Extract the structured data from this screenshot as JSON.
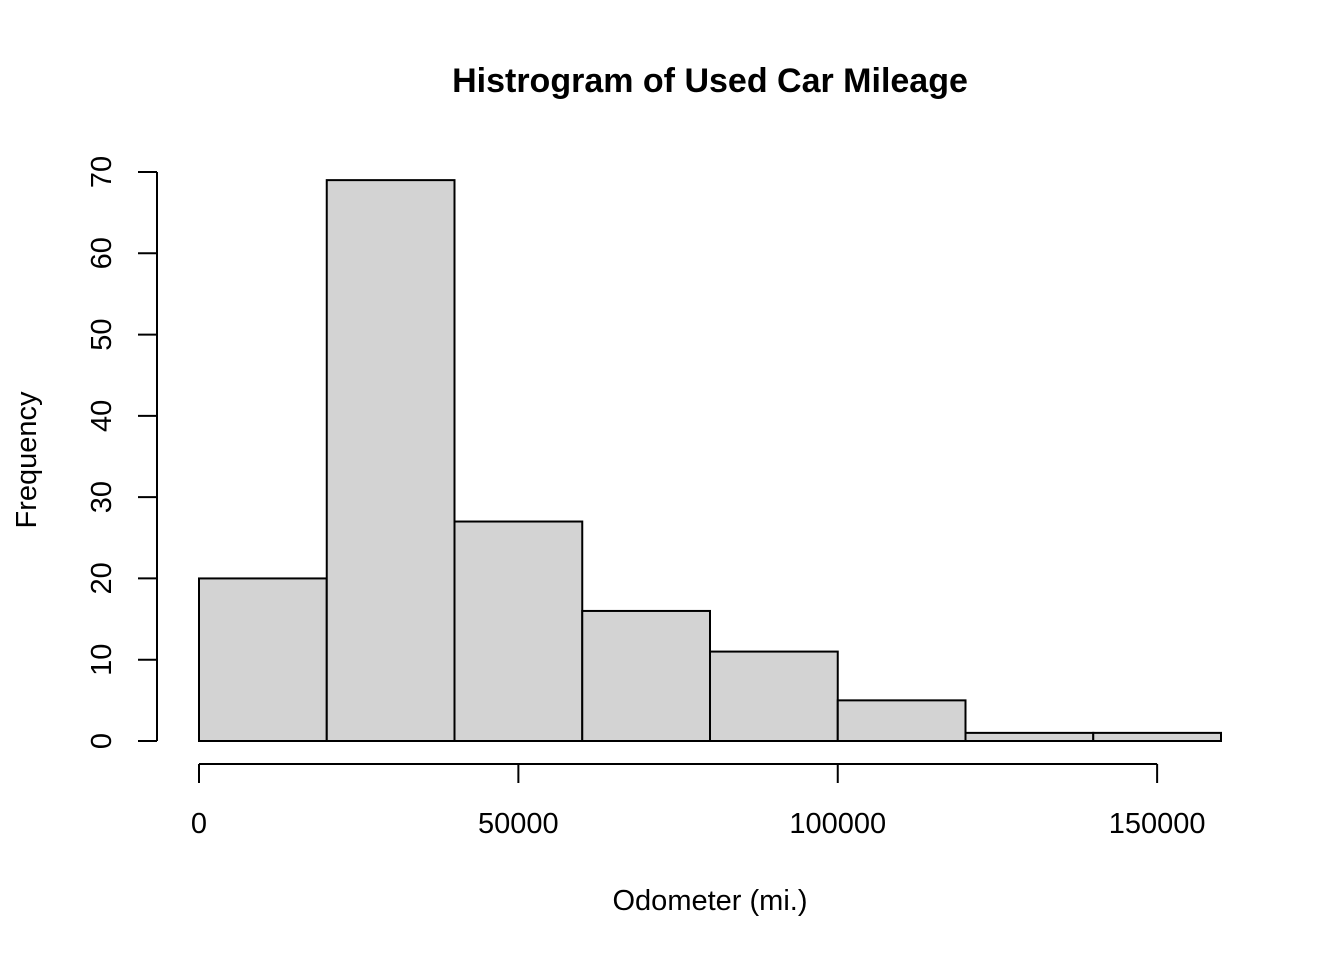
{
  "chart_data": {
    "type": "bar",
    "title": "Histrogram of Used Car Mileage",
    "xlabel": "Odometer (mi.)",
    "ylabel": "Frequency",
    "bins": [
      {
        "x0": 0,
        "x1": 20000,
        "count": 20
      },
      {
        "x0": 20000,
        "x1": 40000,
        "count": 69
      },
      {
        "x0": 40000,
        "x1": 60000,
        "count": 27
      },
      {
        "x0": 60000,
        "x1": 80000,
        "count": 16
      },
      {
        "x0": 80000,
        "x1": 100000,
        "count": 11
      },
      {
        "x0": 100000,
        "x1": 120000,
        "count": 5
      },
      {
        "x0": 120000,
        "x1": 140000,
        "count": 1
      },
      {
        "x0": 140000,
        "x1": 160000,
        "count": 1
      }
    ],
    "xlim": [
      0,
      160000
    ],
    "ylim": [
      0,
      70
    ],
    "x_ticks": [
      0,
      50000,
      100000,
      150000
    ],
    "x_tick_labels": [
      "0",
      "50000",
      "100000",
      "150000"
    ],
    "y_ticks": [
      0,
      10,
      20,
      30,
      40,
      50,
      60,
      70
    ],
    "y_tick_labels": [
      "0",
      "10",
      "20",
      "30",
      "40",
      "50",
      "60",
      "70"
    ],
    "grid": false,
    "bar_color": "#d3d3d3",
    "edge_color": "#000000"
  }
}
